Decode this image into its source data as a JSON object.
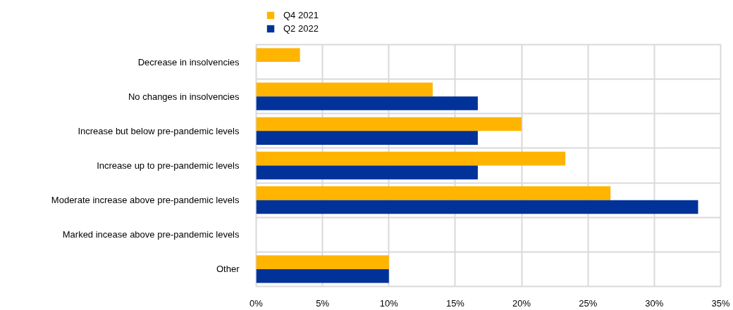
{
  "chart_data": {
    "type": "bar",
    "orientation": "horizontal",
    "categories": [
      "Decrease in insolvencies",
      "No changes in insolvencies",
      "Increase but below pre-pandemic levels",
      "Increase up to pre-pandemic levels",
      "Moderate increase above pre-pandemic levels",
      "Marked incease above pre-pandemic levels",
      "Other"
    ],
    "series": [
      {
        "name": "Q4 2021",
        "color": "#ffb400",
        "values": [
          3.3,
          13.3,
          20.0,
          23.3,
          26.7,
          0,
          10.0
        ]
      },
      {
        "name": "Q2 2022",
        "color": "#003299",
        "values": [
          0,
          16.7,
          16.7,
          16.7,
          33.3,
          0,
          10.0
        ]
      }
    ],
    "xlim": [
      0,
      35
    ],
    "xticks": [
      {
        "value": 0,
        "label": "0%"
      },
      {
        "value": 5,
        "label": "5%"
      },
      {
        "value": 10,
        "label": "10%"
      },
      {
        "value": 15,
        "label": "15%"
      },
      {
        "value": 20,
        "label": "20%"
      },
      {
        "value": 25,
        "label": "25%"
      },
      {
        "value": 30,
        "label": "30%"
      },
      {
        "value": 35,
        "label": "35%"
      }
    ],
    "grid": true,
    "legend": "top left"
  }
}
